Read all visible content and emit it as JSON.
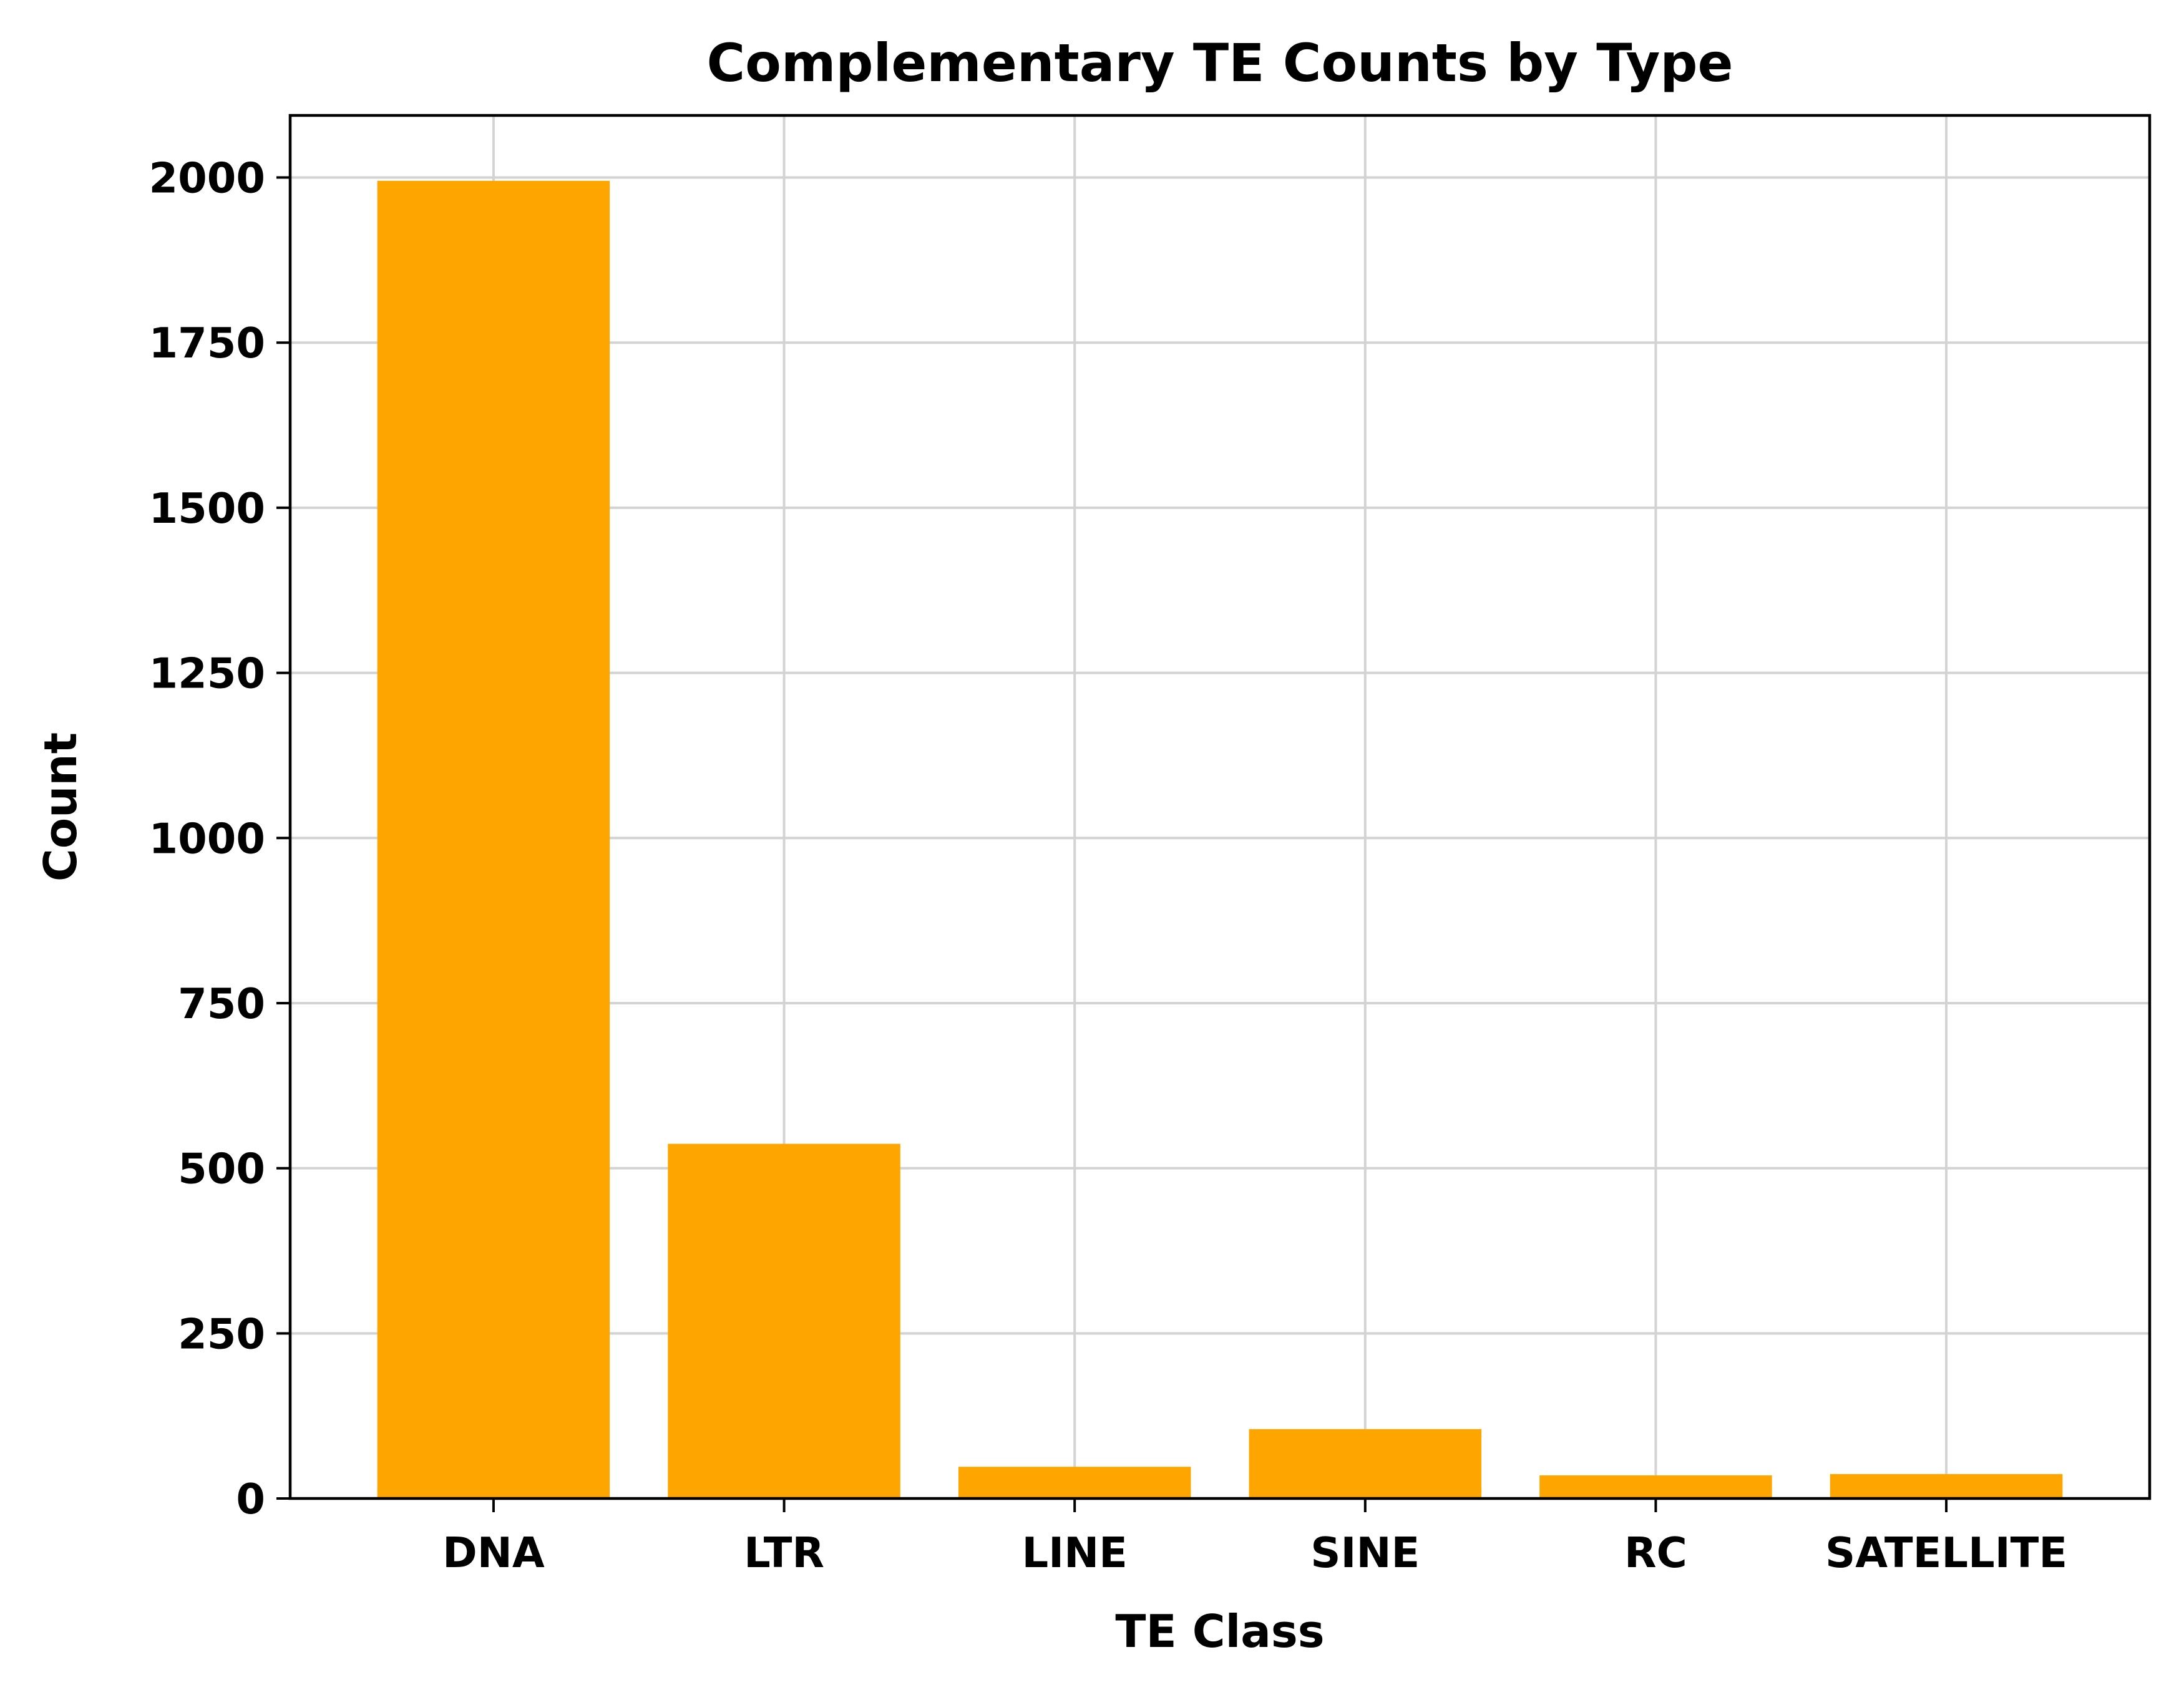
{
  "chart_data": {
    "type": "bar",
    "title": "Complementary TE Counts by Type",
    "xlabel": "TE Class",
    "ylabel": "Count",
    "categories": [
      "DNA",
      "LTR",
      "LINE",
      "SINE",
      "RC",
      "SATELLITE"
    ],
    "values": [
      1995,
      537,
      48,
      105,
      35,
      37
    ],
    "ylim": [
      0,
      2094
    ],
    "yticks": [
      0,
      250,
      500,
      750,
      1000,
      1250,
      1500,
      1750,
      2000
    ],
    "grid": true,
    "bar_color": "#FFA500"
  }
}
